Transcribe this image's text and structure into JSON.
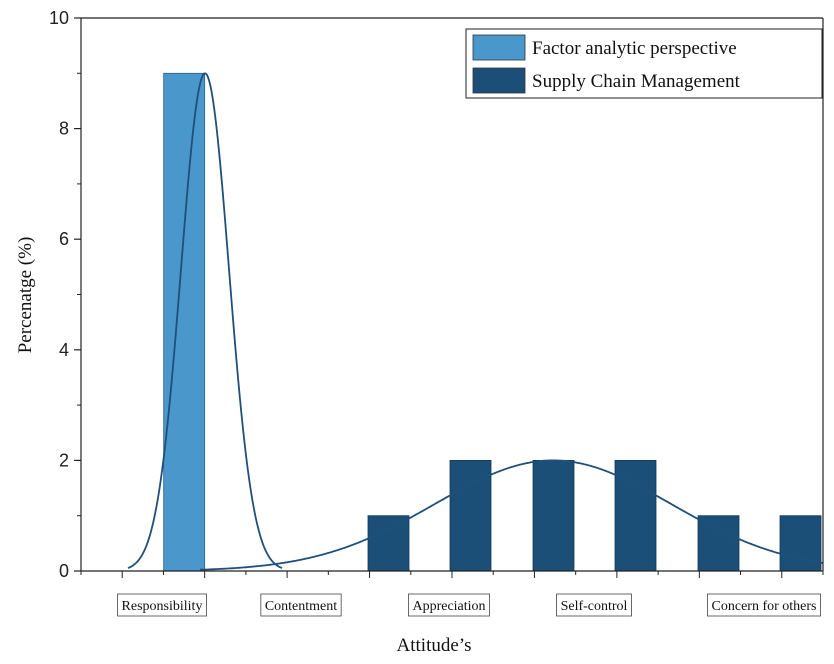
{
  "chart_data": {
    "type": "bar",
    "xlabel": "Attitude’s",
    "ylabel": "Percenatge (%)",
    "ylim": [
      0,
      10
    ],
    "yticks": [
      "0",
      "2",
      "4",
      "6",
      "8",
      "10"
    ],
    "grid": false,
    "legend_position": "top-right",
    "categories": [
      "Responsibility",
      "Contentment",
      "Appreciation",
      "Self-control",
      "Concern for others"
    ],
    "series": [
      {
        "name": "Factor analytic perspective",
        "color": "#4a97cb",
        "x": [
          "Responsibility"
        ],
        "values": [
          9
        ]
      },
      {
        "name": "Supply Chain Management",
        "color": "#1b4f78",
        "x": [
          "Appreciation",
          "Appreciation–Self-control",
          "Self-control",
          "Self-control–Concern for others",
          "Concern for others",
          "Concern for others (right)"
        ],
        "values": [
          1,
          2,
          2,
          2,
          1,
          1
        ]
      }
    ],
    "fit_curves": [
      {
        "series": "Factor analytic perspective",
        "type": "normal",
        "peak": 9
      },
      {
        "series": "Supply Chain Management",
        "type": "normal",
        "peak": 2
      }
    ]
  }
}
